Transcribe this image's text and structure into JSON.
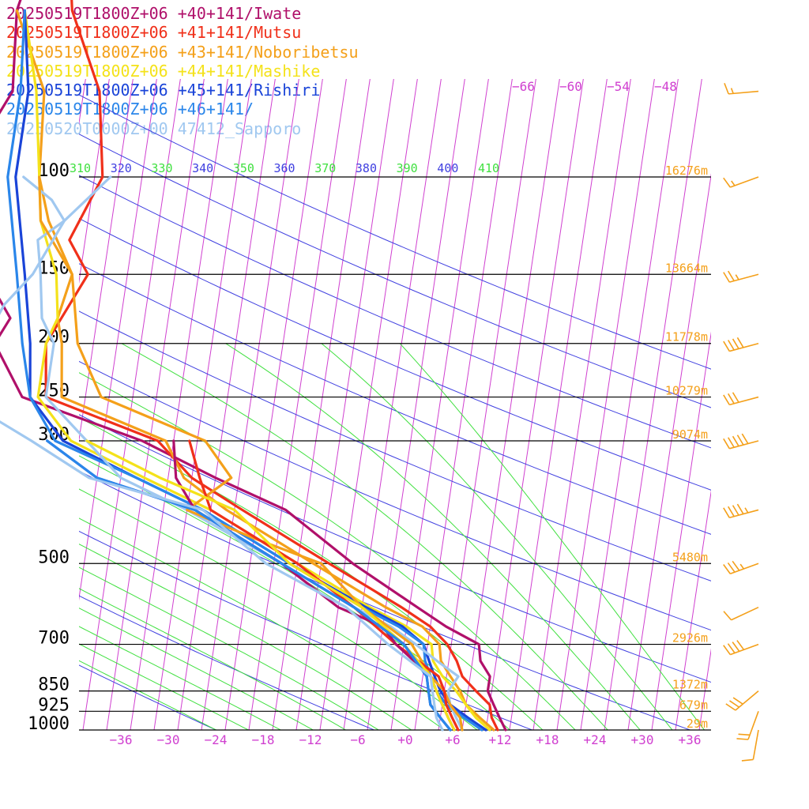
{
  "legend": [
    {
      "label": "20250519T1800Z+06 +40+141/Iwate",
      "color": "#b0106a"
    },
    {
      "label": "20250519T1800Z+06 +41+141/Mutsu",
      "color": "#f0301a"
    },
    {
      "label": "20250519T1800Z+06 +43+141/Noboribetsu",
      "color": "#f4a01a"
    },
    {
      "label": "20250519T1800Z+06 +44+141/Mashike",
      "color": "#f4e21a"
    },
    {
      "label": "20250519T1800Z+06 +45+141/Rishiri",
      "color": "#1a44d8"
    },
    {
      "label": "20250519T1800Z+06 +46+141/",
      "color": "#2a86ea"
    },
    {
      "label": "20250520T0000Z+00 47412_Sapporo",
      "color": "#a0c8f0"
    }
  ],
  "chart_data": {
    "type": "line",
    "title": "",
    "xlabel": "",
    "ylabel": "",
    "xlim": [
      -40,
      40
    ],
    "ylim_pressure": [
      1000,
      100
    ],
    "pressure_ticks": [
      100,
      150,
      200,
      250,
      300,
      500,
      700,
      850,
      925,
      1000
    ],
    "pressure_labels": [
      "100",
      "150",
      "200",
      "250",
      "300",
      "500",
      "700",
      "850",
      "925",
      "1000"
    ],
    "temp_ticks": [
      -36,
      -30,
      -24,
      -18,
      -12,
      -6,
      0,
      6,
      12,
      18,
      24,
      30,
      36
    ],
    "temp_labels": [
      "−36",
      "−30",
      "−24",
      "−18",
      "−12",
      "−6",
      "+0",
      "+6",
      "+12",
      "+18",
      "+24",
      "+30",
      "+36"
    ],
    "top_temp_labels": [
      {
        "t": -66,
        "label": "−66"
      },
      {
        "t": -60,
        "label": "−60"
      },
      {
        "t": -54,
        "label": "−54"
      },
      {
        "t": -48,
        "label": "−48"
      }
    ],
    "theta_labels": [
      "310",
      "320",
      "330",
      "340",
      "350",
      "360",
      "370",
      "380",
      "390",
      "400",
      "410"
    ],
    "height_labels": [
      {
        "p": 100,
        "label": "16276m"
      },
      {
        "p": 150,
        "label": "13664m"
      },
      {
        "p": 200,
        "label": "11778m"
      },
      {
        "p": 250,
        "label": "10279m"
      },
      {
        "p": 300,
        "label": "9074m"
      },
      {
        "p": 500,
        "label": "5480m"
      },
      {
        "p": 700,
        "label": "2926m"
      },
      {
        "p": 850,
        "label": "1372m"
      },
      {
        "p": 925,
        "label": "679m"
      },
      {
        "p": 1000,
        "label": "29m"
      }
    ],
    "colors": {
      "isotherm": "#d040d0",
      "dry_adiabat": "#4040e0",
      "moist_adiabat": "#40e040",
      "isobar": "#000000",
      "height": "#f4a01a",
      "wind": "#f4a01a"
    },
    "series": [
      {
        "name": "20250519T1800Z+06 +40+141/Iwate",
        "color": "#b0106a",
        "points": [
          [
            1000,
            13.5
          ],
          [
            950,
            12.5
          ],
          [
            900,
            11.5
          ],
          [
            850,
            10.5
          ],
          [
            800,
            10.5
          ],
          [
            750,
            9
          ],
          [
            700,
            8.5
          ],
          [
            650,
            4
          ],
          [
            600,
            0
          ],
          [
            500,
            -9
          ],
          [
            400,
            -18.5
          ],
          [
            350,
            -28
          ],
          [
            300,
            -38
          ],
          [
            250,
            -54
          ],
          [
            200,
            -58.5
          ],
          [
            180,
            -57
          ],
          [
            150,
            -61
          ],
          [
            100,
            -66
          ],
          [
            70,
            -61
          ],
          [
            50,
            -62
          ],
          [
            30,
            -59
          ]
        ]
      },
      {
        "name": "20250519T1800Z+06 +41+141/Mutsu",
        "color": "#f0301a",
        "points": [
          [
            1000,
            12.5
          ],
          [
            950,
            11.5
          ],
          [
            900,
            11
          ],
          [
            850,
            9
          ],
          [
            800,
            7
          ],
          [
            750,
            6
          ],
          [
            700,
            4.5
          ],
          [
            650,
            2
          ],
          [
            600,
            -2
          ],
          [
            500,
            -12
          ],
          [
            400,
            -24
          ],
          [
            350,
            -31
          ],
          [
            300,
            -36
          ],
          [
            250,
            -51
          ],
          [
            200,
            -52
          ],
          [
            150,
            -48
          ],
          [
            130,
            -51
          ],
          [
            100,
            -48
          ],
          [
            70,
            -50
          ],
          [
            50,
            -55
          ],
          [
            30,
            -58
          ]
        ]
      },
      {
        "name": "20250519T1800Z+06 +43+141/Noboribetsu",
        "color": "#f4a01a",
        "points": [
          [
            1000,
            12
          ],
          [
            950,
            10
          ],
          [
            900,
            8
          ],
          [
            850,
            7
          ],
          [
            800,
            5.5
          ],
          [
            750,
            4
          ],
          [
            700,
            3.5
          ],
          [
            650,
            1
          ],
          [
            600,
            -4
          ],
          [
            500,
            -14
          ],
          [
            400,
            -26
          ],
          [
            350,
            -32
          ],
          [
            300,
            -35
          ],
          [
            250,
            -49
          ],
          [
            200,
            -50
          ],
          [
            180,
            -51
          ],
          [
            150,
            -50
          ],
          [
            120,
            -54
          ],
          [
            100,
            -56
          ],
          [
            70,
            -57
          ],
          [
            50,
            -62
          ]
        ]
      },
      {
        "name": "20250519T1800Z+06 +44+141/Mashike",
        "color": "#f4e21a",
        "points": [
          [
            1000,
            11.5
          ],
          [
            950,
            9.5
          ],
          [
            900,
            8
          ],
          [
            850,
            6.5
          ],
          [
            800,
            4.5
          ],
          [
            750,
            3
          ],
          [
            700,
            2.5
          ],
          [
            650,
            -1
          ],
          [
            600,
            -6
          ],
          [
            500,
            -16
          ],
          [
            400,
            -28
          ],
          [
            350,
            -37
          ],
          [
            300,
            -47
          ],
          [
            250,
            -52
          ],
          [
            200,
            -52
          ],
          [
            180,
            -51
          ],
          [
            150,
            -52
          ],
          [
            120,
            -55
          ],
          [
            100,
            -56
          ],
          [
            70,
            -58
          ],
          [
            50,
            -61
          ]
        ]
      },
      {
        "name": "20250519T1800Z+06 +45+141/Rishiri",
        "color": "#1a44d8",
        "points": [
          [
            1000,
            11
          ],
          [
            950,
            8.5
          ],
          [
            900,
            6
          ],
          [
            850,
            4.5
          ],
          [
            800,
            3.5
          ],
          [
            750,
            2.5
          ],
          [
            700,
            1.5
          ],
          [
            650,
            -1.5
          ],
          [
            600,
            -6.5
          ],
          [
            500,
            -17
          ],
          [
            400,
            -29
          ],
          [
            350,
            -38
          ],
          [
            300,
            -48
          ],
          [
            250,
            -53
          ],
          [
            200,
            -54
          ],
          [
            150,
            -56
          ],
          [
            100,
            -59
          ],
          [
            70,
            -59
          ],
          [
            50,
            -61
          ]
        ]
      },
      {
        "name": "20250519T1800Z+06 +46+141/",
        "color": "#2a86ea",
        "points": [
          [
            1000,
            10.5
          ],
          [
            950,
            8
          ],
          [
            900,
            5.5
          ],
          [
            850,
            4
          ],
          [
            800,
            3
          ],
          [
            750,
            2
          ],
          [
            700,
            1.5
          ],
          [
            650,
            -2
          ],
          [
            600,
            -7
          ],
          [
            500,
            -17
          ],
          [
            400,
            -29
          ],
          [
            350,
            -38
          ],
          [
            300,
            -49
          ],
          [
            250,
            -53
          ],
          [
            200,
            -55
          ],
          [
            150,
            -57
          ],
          [
            100,
            -60
          ],
          [
            70,
            -60
          ],
          [
            50,
            -61
          ]
        ]
      },
      {
        "name": "20250520T0000Z+00 47412_Sapporo",
        "color": "#a0c8f0",
        "points": [
          [
            1000,
            8
          ],
          [
            950,
            7
          ],
          [
            900,
            6
          ],
          [
            850,
            5.5
          ],
          [
            800,
            6.5
          ],
          [
            750,
            3.5
          ],
          [
            700,
            0.5
          ],
          [
            650,
            -3
          ],
          [
            600,
            -8
          ],
          [
            500,
            -18
          ],
          [
            400,
            -31
          ],
          [
            350,
            -40
          ],
          [
            300,
            -45
          ],
          [
            250,
            -51
          ],
          [
            200,
            -51
          ],
          [
            180,
            -53
          ],
          [
            150,
            -54
          ],
          [
            130,
            -55
          ],
          [
            120,
            -52
          ],
          [
            110,
            -54
          ],
          [
            100,
            -58
          ]
        ]
      },
      {
        "name": "",
        "color": "#f4a01a",
        "points": [
          [
            1000,
            8
          ],
          [
            950,
            7.5
          ],
          [
            900,
            6
          ],
          [
            850,
            5
          ],
          [
            800,
            3
          ],
          [
            700,
            0
          ],
          [
            600,
            -7
          ],
          [
            500,
            -13
          ],
          [
            450,
            -22
          ],
          [
            400,
            -31
          ],
          [
            350,
            -26
          ],
          [
            300,
            -30
          ],
          [
            250,
            -44
          ],
          [
            200,
            -48
          ],
          [
            150,
            -50
          ],
          [
            120,
            -55
          ],
          [
            100,
            -56
          ]
        ]
      },
      {
        "name": "",
        "color": "#f0301a",
        "points": [
          [
            1000,
            7.5
          ],
          [
            950,
            6.5
          ],
          [
            900,
            5.5
          ],
          [
            850,
            5
          ],
          [
            800,
            4
          ],
          [
            700,
            -2
          ],
          [
            600,
            -8
          ],
          [
            500,
            -16
          ],
          [
            400,
            -28
          ],
          [
            350,
            -30
          ],
          [
            300,
            -32
          ]
        ]
      },
      {
        "name": "",
        "color": "#b0106a",
        "points": [
          [
            1000,
            7
          ],
          [
            950,
            6
          ],
          [
            900,
            5
          ],
          [
            850,
            4
          ],
          [
            800,
            3
          ],
          [
            700,
            -2
          ],
          [
            650,
            -4
          ],
          [
            600,
            -10
          ],
          [
            500,
            -18
          ],
          [
            400,
            -30
          ],
          [
            350,
            -33
          ],
          [
            300,
            -34
          ]
        ]
      },
      {
        "name": "",
        "color": "#f4e21a",
        "points": [
          [
            1000,
            7
          ],
          [
            950,
            6
          ],
          [
            900,
            5
          ],
          [
            850,
            4
          ],
          [
            800,
            3
          ],
          [
            700,
            -1
          ],
          [
            600,
            -7
          ],
          [
            500,
            -17
          ],
          [
            400,
            -25
          ],
          [
            350,
            -35
          ],
          [
            300,
            -45
          ]
        ]
      },
      {
        "name": "",
        "color": "#1a44d8",
        "points": [
          [
            1000,
            6.5
          ],
          [
            950,
            5
          ],
          [
            900,
            3.5
          ],
          [
            850,
            3
          ],
          [
            800,
            2.5
          ],
          [
            700,
            -1
          ],
          [
            600,
            -8
          ],
          [
            500,
            -18
          ],
          [
            400,
            -30
          ],
          [
            350,
            -43
          ],
          [
            300,
            -50
          ]
        ]
      },
      {
        "name": "",
        "color": "#2a86ea",
        "points": [
          [
            1000,
            6.5
          ],
          [
            950,
            5
          ],
          [
            900,
            3.5
          ],
          [
            850,
            3
          ],
          [
            800,
            2.5
          ],
          [
            700,
            -1
          ],
          [
            600,
            -8
          ],
          [
            500,
            -18
          ],
          [
            400,
            -30
          ],
          [
            350,
            -43
          ],
          [
            300,
            -50
          ]
        ]
      },
      {
        "name": "",
        "color": "#a0c8f0",
        "points": [
          [
            1000,
            5.5
          ],
          [
            950,
            4.5
          ],
          [
            900,
            4
          ],
          [
            850,
            3.5
          ],
          [
            800,
            3
          ],
          [
            700,
            -3
          ],
          [
            600,
            -9
          ],
          [
            500,
            -20
          ],
          [
            400,
            -29
          ],
          [
            350,
            -44
          ],
          [
            300,
            -52
          ],
          [
            250,
            -62
          ],
          [
            200,
            -60
          ],
          [
            170,
            -58
          ],
          [
            150,
            -55
          ],
          [
            120,
            -52
          ],
          [
            100,
            -47
          ]
        ]
      }
    ],
    "wind_barbs": [
      {
        "p": 1000,
        "dir": 190,
        "kt": 12
      },
      {
        "p": 925,
        "dir": 200,
        "kt": 20
      },
      {
        "p": 850,
        "dir": 230,
        "kt": 30
      },
      {
        "p": 700,
        "dir": 250,
        "kt": 40
      },
      {
        "p": 600,
        "dir": 245,
        "kt": 10
      },
      {
        "p": 500,
        "dir": 250,
        "kt": 35
      },
      {
        "p": 400,
        "dir": 255,
        "kt": 45
      },
      {
        "p": 300,
        "dir": 255,
        "kt": 50
      },
      {
        "p": 250,
        "dir": 255,
        "kt": 30
      },
      {
        "p": 200,
        "dir": 255,
        "kt": 40
      },
      {
        "p": 150,
        "dir": 255,
        "kt": 25
      },
      {
        "p": 100,
        "dir": 250,
        "kt": 15
      },
      {
        "p": 70,
        "dir": 265,
        "kt": 15
      },
      {
        "p": 30,
        "dir": 290,
        "kt": 10
      }
    ]
  }
}
